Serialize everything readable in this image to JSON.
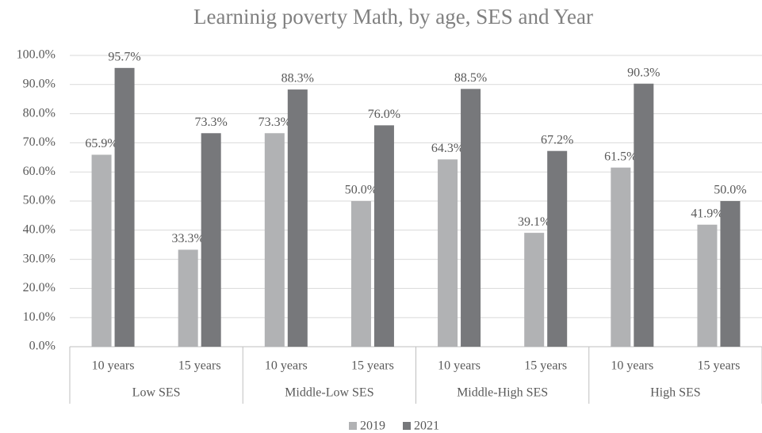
{
  "chart_data": {
    "type": "bar",
    "title": "Learninig poverty  Math, by age, SES and Year",
    "categories": [
      "10 years",
      "15 years",
      "10 years",
      "15 years",
      "10 years",
      "15 years",
      "10 years",
      "15 years"
    ],
    "groups": [
      "Low SES",
      "Middle-Low SES",
      "Middle-High SES",
      "High SES"
    ],
    "series": [
      {
        "name": "2019",
        "color": "#b1b2b4",
        "values": [
          65.9,
          33.3,
          73.3,
          50.0,
          64.3,
          39.1,
          61.5,
          41.9
        ],
        "value_labels": [
          "65.9%",
          "33.3%",
          "73.3%",
          "50.0%",
          "64.3%",
          "39.1%",
          "61.5%",
          "41.9%"
        ]
      },
      {
        "name": "2021",
        "color": "#77787b",
        "values": [
          95.7,
          73.3,
          88.3,
          76.0,
          88.5,
          67.2,
          90.3,
          50.0
        ],
        "value_labels": [
          "95.7%",
          "73.3%",
          "88.3%",
          "76.0%",
          "88.5%",
          "67.2%",
          "90.3%",
          "50.0%"
        ]
      }
    ],
    "ylim": [
      0,
      100
    ],
    "yticks": [
      {
        "value": 0,
        "label": "0.0%"
      },
      {
        "value": 10,
        "label": "10.0%"
      },
      {
        "value": 20,
        "label": "20.0%"
      },
      {
        "value": 30,
        "label": "30.0%"
      },
      {
        "value": 40,
        "label": "40.0%"
      },
      {
        "value": 50,
        "label": "50.0%"
      },
      {
        "value": 60,
        "label": "60.0%"
      },
      {
        "value": 70,
        "label": "70.0%"
      },
      {
        "value": 80,
        "label": "80.0%"
      },
      {
        "value": 90,
        "label": "90.0%"
      },
      {
        "value": 100,
        "label": "100.0%"
      }
    ],
    "grid": true,
    "legend": "bottom"
  }
}
